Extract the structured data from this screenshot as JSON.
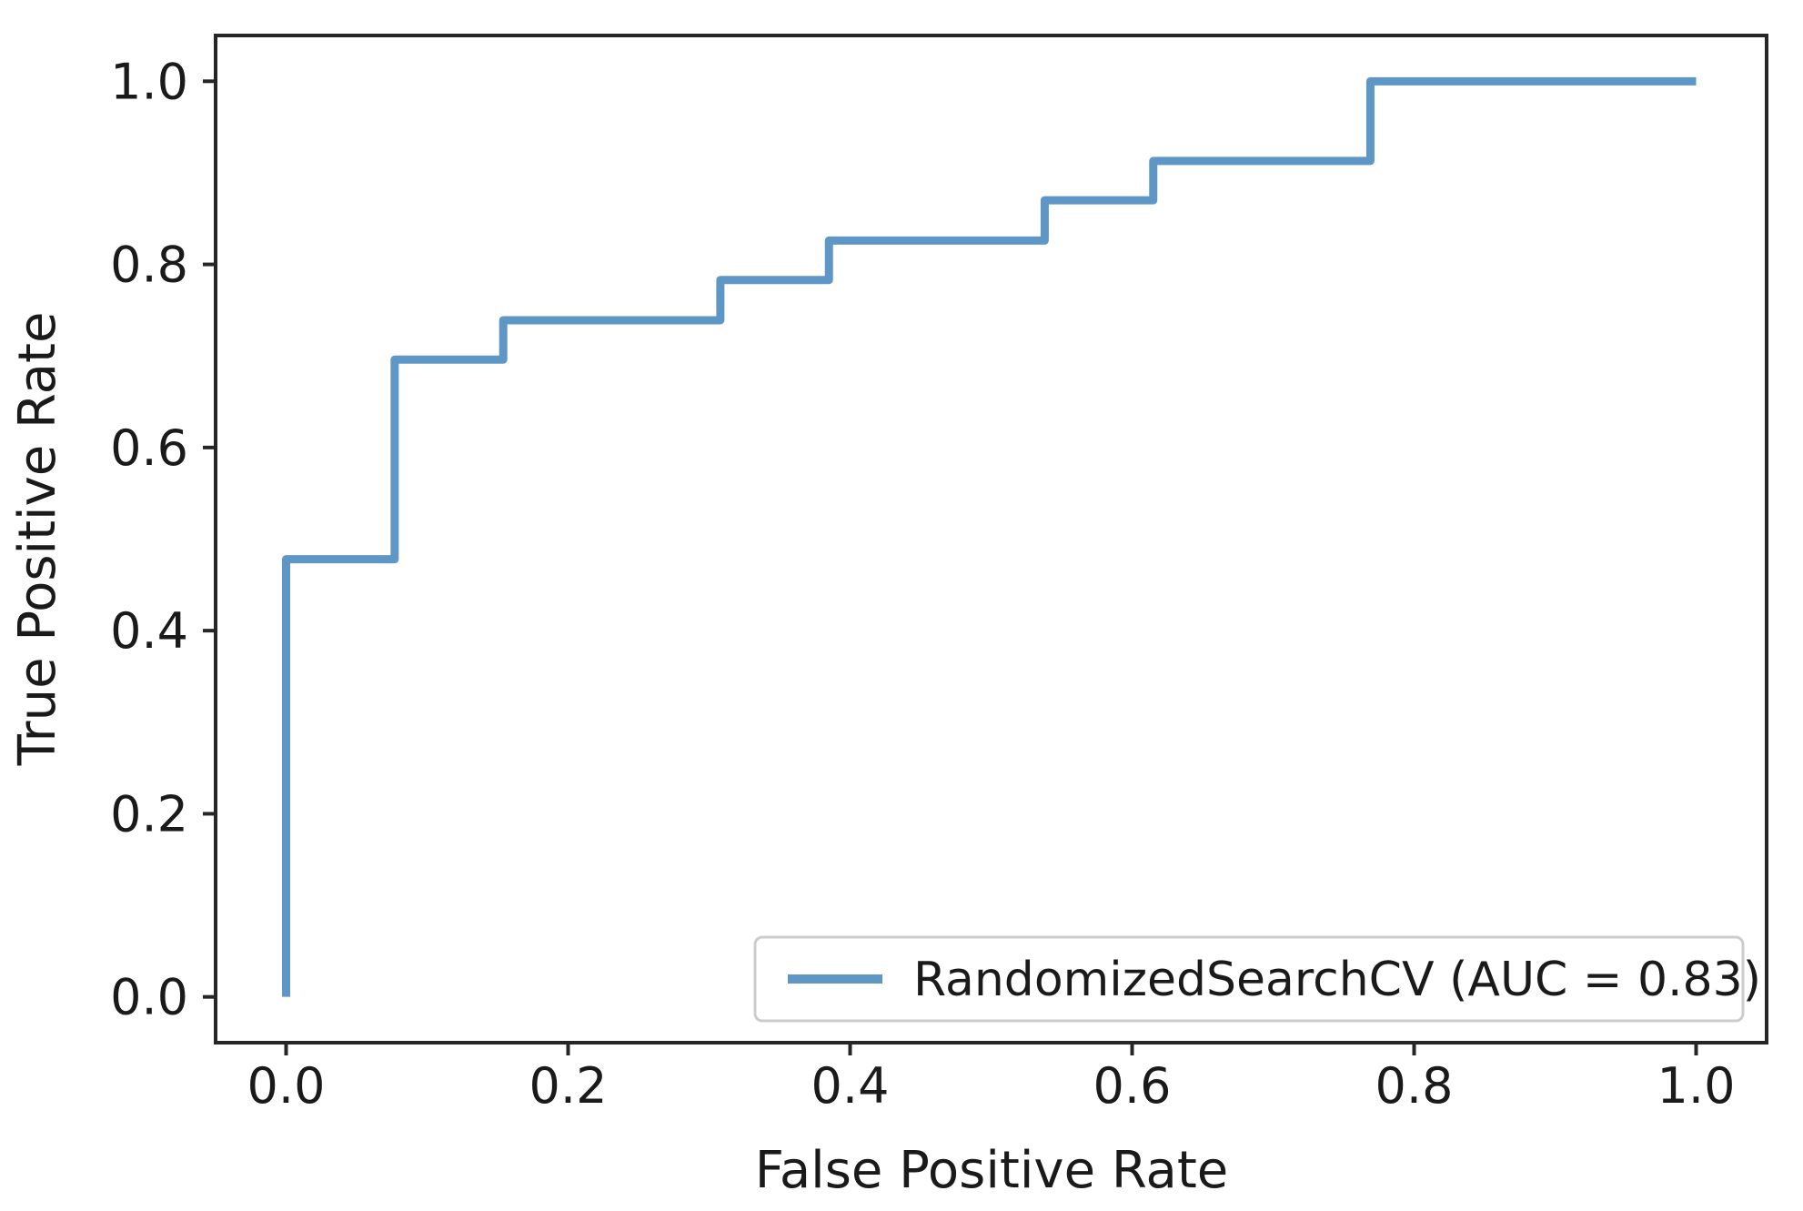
{
  "figure": {
    "background": "#ffffff",
    "axes_color": "#262626"
  },
  "chart_data": {
    "type": "line",
    "subtype": "roc-curve",
    "title": "",
    "xlabel": "False Positive Rate",
    "ylabel": "True Positive Rate",
    "xlim": [
      -0.05,
      1.05
    ],
    "ylim": [
      -0.05,
      1.05
    ],
    "x_ticks": [
      "0.0",
      "0.2",
      "0.4",
      "0.6",
      "0.8",
      "1.0"
    ],
    "y_ticks": [
      "0.0",
      "0.2",
      "0.4",
      "0.6",
      "0.8",
      "1.0"
    ],
    "grid": false,
    "legend": {
      "position": "lower right",
      "entries": [
        {
          "label": "RandomizedSearchCV (AUC = 0.83)",
          "color": "#5e97c5"
        }
      ]
    },
    "series": [
      {
        "name": "RandomizedSearchCV",
        "auc": 0.83,
        "color": "#5e97c5",
        "drawstyle": "steps-post",
        "x": [
          0.0,
          0.0,
          0.077,
          0.154,
          0.308,
          0.385,
          0.538,
          0.615,
          0.769,
          1.0
        ],
        "y": [
          0.0,
          0.478,
          0.696,
          0.739,
          0.783,
          0.826,
          0.87,
          0.913,
          1.0,
          1.0
        ]
      }
    ]
  }
}
